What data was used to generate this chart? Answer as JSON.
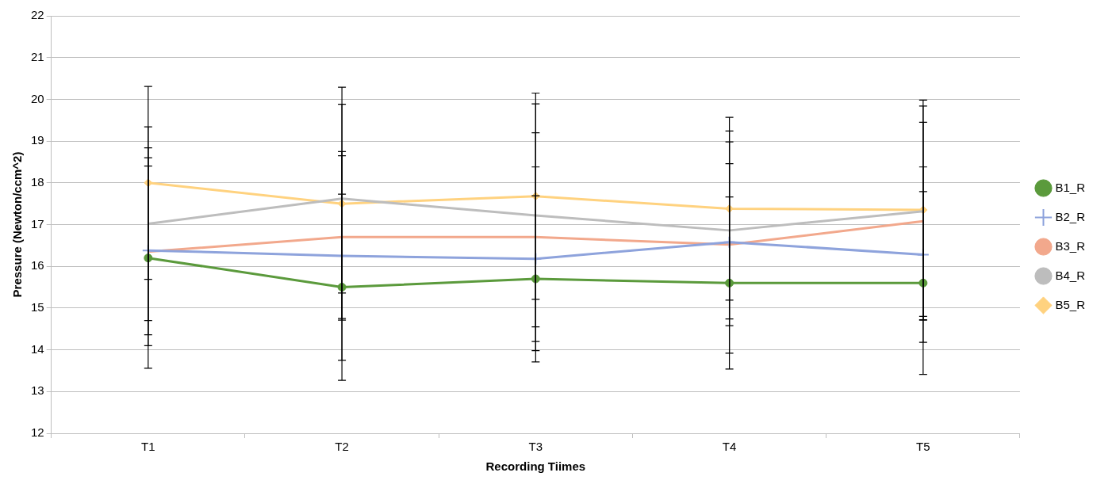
{
  "chart_data": {
    "type": "line",
    "xlabel": "Recording Tiimes",
    "ylabel": "Pressure (Newton/ccm^2)",
    "categories": [
      "T1",
      "T2",
      "T3",
      "T4",
      "T5"
    ],
    "ylim": [
      12,
      22
    ],
    "yticks": [
      12,
      13,
      14,
      15,
      16,
      17,
      18,
      19,
      20,
      21,
      22
    ],
    "grid": "y",
    "legend": "right",
    "line_style": "solid",
    "series": [
      {
        "name": "B1_R",
        "color": "#5b9a3c",
        "marker": "circle",
        "values": [
          16.2,
          15.5,
          15.7,
          15.6,
          15.6
        ],
        "errors": [
          2.64,
          2.23,
          1.99,
          2.06,
          2.19
        ]
      },
      {
        "name": "B2_R",
        "color": "#8ea3dc",
        "marker": "cross",
        "values": [
          16.38,
          16.25,
          16.18,
          16.58,
          16.28
        ],
        "errors": [
          2.02,
          2.5,
          2.2,
          2.66,
          2.1
        ]
      },
      {
        "name": "B3_R",
        "color": "#f2a88c",
        "marker": "none",
        "values": [
          16.35,
          16.7,
          16.7,
          16.52,
          17.08
        ],
        "errors": [
          2.25,
          1.95,
          2.5,
          1.94,
          2.37
        ]
      },
      {
        "name": "B4_R",
        "color": "#bdbdbd",
        "marker": "none",
        "values": [
          17.02,
          17.62,
          17.22,
          16.86,
          17.32
        ],
        "errors": [
          2.32,
          2.26,
          2.67,
          2.12,
          2.52
        ]
      },
      {
        "name": "B5_R",
        "color": "#ffd27f",
        "marker": "diamond",
        "values": [
          18.0,
          17.5,
          17.68,
          17.38,
          17.35
        ],
        "errors": [
          2.31,
          2.79,
          2.47,
          2.19,
          2.63
        ]
      }
    ]
  }
}
